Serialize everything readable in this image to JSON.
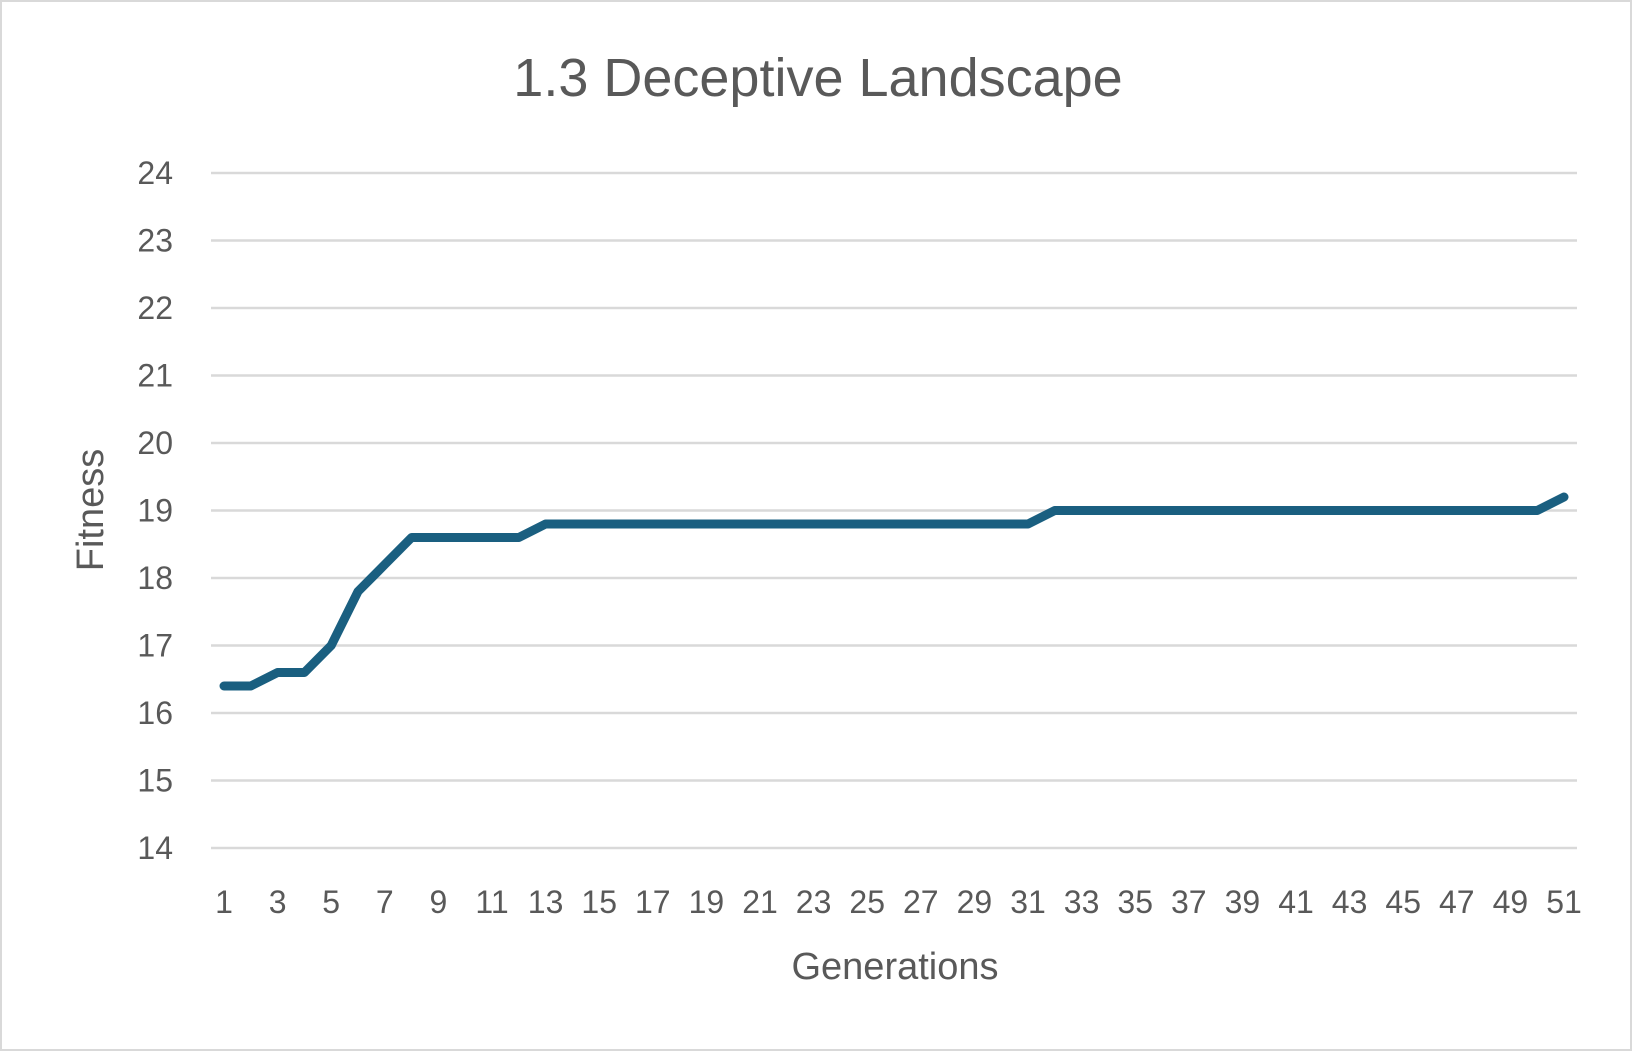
{
  "chart_data": {
    "type": "line",
    "title": "1.3 Deceptive Landscape",
    "xlabel": "Generations",
    "ylabel": "Fitness",
    "ylim": [
      14,
      24
    ],
    "y_ticks": [
      14,
      15,
      16,
      17,
      18,
      19,
      20,
      21,
      22,
      23,
      24
    ],
    "x_tick_labels": [
      "1",
      "3",
      "5",
      "7",
      "9",
      "11",
      "13",
      "15",
      "17",
      "19",
      "21",
      "23",
      "25",
      "27",
      "29",
      "31",
      "33",
      "35",
      "37",
      "39",
      "41",
      "43",
      "45",
      "47",
      "49",
      "51"
    ],
    "grid": true,
    "legend": "none",
    "series": [
      {
        "color": "#1a5f80",
        "x": [
          1,
          2,
          3,
          4,
          5,
          6,
          7,
          8,
          9,
          10,
          11,
          12,
          13,
          14,
          15,
          16,
          17,
          18,
          19,
          20,
          21,
          22,
          23,
          24,
          25,
          26,
          27,
          28,
          29,
          30,
          31,
          32,
          33,
          34,
          35,
          36,
          37,
          38,
          39,
          40,
          41,
          42,
          43,
          44,
          45,
          46,
          47,
          48,
          49,
          50,
          51
        ],
        "values": [
          16.4,
          16.4,
          16.6,
          16.6,
          17.0,
          17.8,
          18.2,
          18.6,
          18.6,
          18.6,
          18.6,
          18.6,
          18.8,
          18.8,
          18.8,
          18.8,
          18.8,
          18.8,
          18.8,
          18.8,
          18.8,
          18.8,
          18.8,
          18.8,
          18.8,
          18.8,
          18.8,
          18.8,
          18.8,
          18.8,
          18.8,
          19.0,
          19.0,
          19.0,
          19.0,
          19.0,
          19.0,
          19.0,
          19.0,
          19.0,
          19.0,
          19.0,
          19.0,
          19.0,
          19.0,
          19.0,
          19.0,
          19.0,
          19.0,
          19.0,
          19.2
        ]
      }
    ]
  }
}
